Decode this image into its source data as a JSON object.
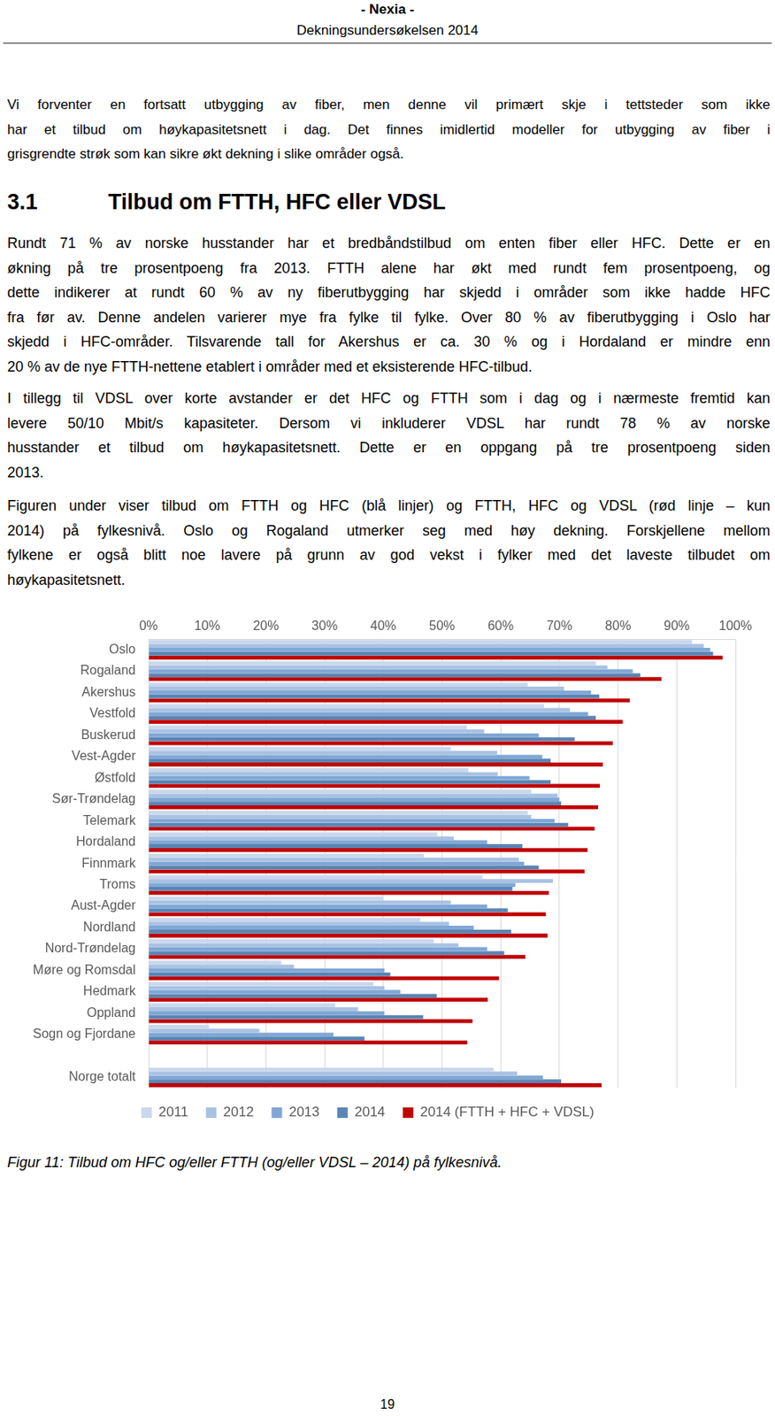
{
  "header": {
    "title": "- Nexia -",
    "subtitle": "Dekningsundersøkelsen 2014"
  },
  "intro": [
    "Vi forventer en fortsatt utbygging av fiber, men denne vil primært skje i tettsteder som ikke",
    "har et tilbud om høykapasitetsnett i dag. Det finnes imidlertid modeller for utbygging av fiber i",
    "grisgrendte strøk som kan sikre økt dekning i slike områder også."
  ],
  "section": {
    "number": "3.1",
    "title": "Tilbud om FTTH, HFC eller VDSL"
  },
  "paragraphs": [
    [
      "Rundt 71 % av norske husstander har et bredbåndstilbud om enten fiber eller HFC. Dette er en",
      "økning på tre prosentpoeng fra 2013. FTTH alene har økt med rundt fem prosentpoeng, og",
      "dette indikerer at rundt 60 % av ny fiberutbygging har skjedd i områder som ikke hadde HFC",
      "fra før av. Denne andelen varierer mye fra fylke til fylke. Over 80 % av fiberutbygging i Oslo har",
      "skjedd i HFC-områder. Tilsvarende tall for Akershus er ca. 30 % og i Hordaland er mindre enn",
      "20 % av de nye FTTH-nettene etablert i områder med et eksisterende HFC-tilbud."
    ],
    [
      "I tillegg til VDSL over korte avstander er det HFC og FTTH som i dag og i nærmeste fremtid kan",
      "levere 50/10 Mbit/s kapasiteter. Dersom vi inkluderer VDSL har rundt 78 % av norske",
      "husstander et tilbud om høykapasitetsnett. Dette er en oppgang på tre prosentpoeng siden",
      "2013."
    ],
    [
      "Figuren under viser tilbud om FTTH og HFC (blå linjer) og FTTH, HFC og VDSL (rød linje – kun",
      "2014) på fylkesnivå. Oslo og Rogaland utmerker seg med høy dekning. Forskjellene mellom",
      "fylkene er også blitt noe lavere på grunn av god vekst i fylker med det laveste tilbudet om",
      "høykapasitetsnett."
    ]
  ],
  "chart_data": {
    "type": "bar",
    "orientation": "horizontal",
    "categories": [
      "Oslo",
      "Rogaland",
      "Akershus",
      "Vestfold",
      "Buskerud",
      "Vest-Agder",
      "Østfold",
      "Sør-Trøndelag",
      "Telemark",
      "Hordaland",
      "Finnmark",
      "Troms",
      "Aust-Agder",
      "Nordland",
      "Nord-Trøndelag",
      "Møre og Romsdal",
      "Hedmark",
      "Oppland",
      "Sogn og Fjordane",
      null,
      "Norge totalt"
    ],
    "series": [
      {
        "name": "2011",
        "color": "#c9d8ed",
        "values": [
          92.6,
          76.2,
          64.6,
          67.4,
          54.2,
          51.5,
          54.5,
          65.2,
          64.6,
          49.2,
          46.9,
          56.9,
          40.0,
          46.3,
          48.6,
          22.6,
          38.3,
          31.8,
          10.3,
          null,
          58.8
        ]
      },
      {
        "name": "2012",
        "color": "#a9c2e3",
        "values": [
          94.6,
          78.2,
          70.8,
          71.8,
          57.2,
          59.4,
          59.5,
          69.7,
          65.2,
          52.0,
          63.1,
          68.9,
          51.5,
          51.2,
          52.8,
          24.8,
          40.2,
          35.7,
          18.9,
          null,
          62.8
        ]
      },
      {
        "name": "2013",
        "color": "#80a7d6",
        "values": [
          95.7,
          82.5,
          75.4,
          74.9,
          66.5,
          67.1,
          64.9,
          70.0,
          69.2,
          57.7,
          64.0,
          62.5,
          57.7,
          55.4,
          57.7,
          40.2,
          42.9,
          40.2,
          31.5,
          null,
          67.2
        ]
      },
      {
        "name": "2014",
        "color": "#5b85b3",
        "values": [
          96.2,
          83.8,
          76.8,
          76.2,
          72.6,
          68.5,
          68.5,
          70.3,
          71.5,
          63.7,
          66.5,
          62.0,
          61.2,
          61.8,
          60.6,
          41.2,
          49.1,
          46.8,
          36.8,
          null,
          70.3
        ]
      },
      {
        "name": "2014 (FTTH + HFC + VDSL)",
        "color": "#c00000",
        "values": [
          97.8,
          87.4,
          82.0,
          80.8,
          79.1,
          77.4,
          76.9,
          76.6,
          76.0,
          74.8,
          74.3,
          68.2,
          67.7,
          68.0,
          64.2,
          59.7,
          57.8,
          55.2,
          54.3,
          null,
          77.2
        ]
      }
    ],
    "xlim": [
      0,
      100
    ],
    "xticks": [
      {
        "value": 0,
        "label": "0%"
      },
      {
        "value": 10,
        "label": "10%"
      },
      {
        "value": 20,
        "label": "20%"
      },
      {
        "value": 30,
        "label": "30%"
      },
      {
        "value": 40,
        "label": "40%"
      },
      {
        "value": 50,
        "label": "50%"
      },
      {
        "value": 60,
        "label": "60%"
      },
      {
        "value": 70,
        "label": "70%"
      },
      {
        "value": 80,
        "label": "80%"
      },
      {
        "value": 90,
        "label": "90%"
      },
      {
        "value": 100,
        "label": "100%"
      }
    ],
    "grid": true,
    "legend": "bottom"
  },
  "caption": "Figur 11: Tilbud om HFC og/eller FTTH (og/eller VDSL – 2014) på fylkesnivå.",
  "page_number": "19"
}
